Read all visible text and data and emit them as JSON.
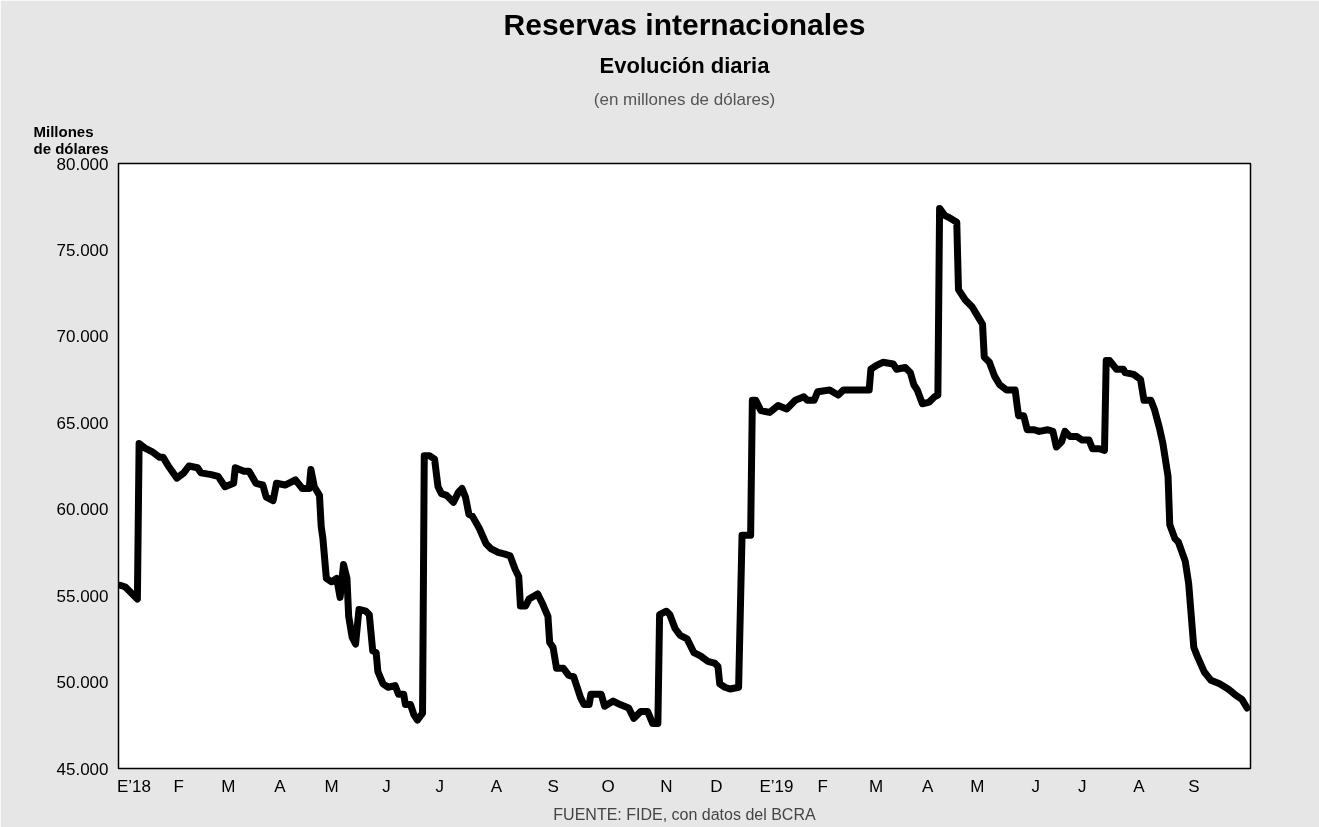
{
  "chart_data": {
    "type": "line",
    "title": "Reservas internacionales",
    "subtitle": "Evolución diaria",
    "ylabel": "Millones de dólares",
    "annotations": [
      "(en millones de dólares)",
      "FUENTE: FIDE, con datos del BCRA"
    ],
    "x": [
      "2018-01-02",
      "2018-01-05",
      "2018-01-12",
      "2018-01-13",
      "2018-01-17",
      "2018-01-21",
      "2018-01-25",
      "2018-01-27",
      "2018-01-30",
      "2018-02-04",
      "2018-02-08",
      "2018-02-11",
      "2018-02-16",
      "2018-02-18",
      "2018-02-24",
      "2018-02-28",
      "2018-03-04",
      "2018-03-09",
      "2018-03-10",
      "2018-03-15",
      "2018-03-18",
      "2018-03-22",
      "2018-03-26",
      "2018-03-28",
      "2018-04-01",
      "2018-04-03",
      "2018-04-08",
      "2018-04-14",
      "2018-04-18",
      "2018-04-22",
      "2018-04-23",
      "2018-04-25",
      "2018-04-28",
      "2018-04-29",
      "2018-04-30",
      "2018-05-02",
      "2018-05-05",
      "2018-05-08",
      "2018-05-10",
      "2018-05-12",
      "2018-05-14",
      "2018-05-15",
      "2018-05-17",
      "2018-05-19",
      "2018-05-21",
      "2018-05-25",
      "2018-05-27",
      "2018-05-29",
      "2018-05-31",
      "2018-06-01",
      "2018-06-04",
      "2018-06-07",
      "2018-06-11",
      "2018-06-13",
      "2018-06-16",
      "2018-06-17",
      "2018-06-20",
      "2018-06-22",
      "2018-06-24",
      "2018-06-27",
      "2018-06-28",
      "2018-07-01",
      "2018-07-04",
      "2018-07-06",
      "2018-07-08",
      "2018-07-11",
      "2018-07-15",
      "2018-07-18",
      "2018-07-20",
      "2018-07-22",
      "2018-07-24",
      "2018-07-26",
      "2018-07-30",
      "2018-08-03",
      "2018-08-06",
      "2018-08-10",
      "2018-08-14",
      "2018-08-17",
      "2018-08-20",
      "2018-08-22",
      "2018-08-23",
      "2018-08-26",
      "2018-08-28",
      "2018-09-02",
      "2018-09-05",
      "2018-09-08",
      "2018-09-09",
      "2018-09-11",
      "2018-09-13",
      "2018-09-17",
      "2018-09-20",
      "2018-09-23",
      "2018-09-27",
      "2018-09-29",
      "2018-10-02",
      "2018-10-03",
      "2018-10-09",
      "2018-10-11",
      "2018-10-16",
      "2018-10-20",
      "2018-10-25",
      "2018-10-28",
      "2018-11-01",
      "2018-11-05",
      "2018-11-08",
      "2018-11-11",
      "2018-11-12",
      "2018-11-16",
      "2018-11-18",
      "2018-11-21",
      "2018-11-24",
      "2018-11-28",
      "2018-12-02",
      "2018-12-04",
      "2018-12-06",
      "2018-12-10",
      "2018-12-14",
      "2018-12-16",
      "2018-12-17",
      "2018-12-20",
      "2018-12-23",
      "2018-12-28",
      "2018-12-30",
      "2019-01-04",
      "2019-01-05",
      "2019-01-07",
      "2019-01-10",
      "2019-01-15",
      "2019-01-20",
      "2019-01-25",
      "2019-01-30",
      "2019-02-04",
      "2019-02-06",
      "2019-02-10",
      "2019-02-12",
      "2019-02-19",
      "2019-02-24",
      "2019-02-27",
      "2019-03-06",
      "2019-03-10",
      "2019-03-14",
      "2019-03-15",
      "2019-03-18",
      "2019-03-22",
      "2019-03-28",
      "2019-03-30",
      "2019-04-04",
      "2019-04-07",
      "2019-04-09",
      "2019-04-11",
      "2019-04-14",
      "2019-04-18",
      "2019-04-21",
      "2019-04-23",
      "2019-04-24",
      "2019-04-27",
      "2019-04-29",
      "2019-05-04",
      "2019-05-05",
      "2019-05-09",
      "2019-05-13",
      "2019-05-16",
      "2019-05-19",
      "2019-05-20",
      "2019-05-23",
      "2019-05-26",
      "2019-05-29",
      "2019-06-02",
      "2019-06-07",
      "2019-06-08",
      "2019-06-09",
      "2019-06-12",
      "2019-06-14",
      "2019-06-18",
      "2019-06-21",
      "2019-06-26",
      "2019-06-29",
      "2019-07-01",
      "2019-07-04",
      "2019-07-06",
      "2019-07-09",
      "2019-07-13",
      "2019-07-16",
      "2019-07-20",
      "2019-07-22",
      "2019-07-26",
      "2019-07-29",
      "2019-07-30",
      "2019-08-01",
      "2019-08-05",
      "2019-08-09",
      "2019-08-10",
      "2019-08-15",
      "2019-08-19",
      "2019-08-21",
      "2019-08-25",
      "2019-08-27",
      "2019-08-30",
      "2019-09-01",
      "2019-09-04",
      "2019-09-05",
      "2019-09-08",
      "2019-09-10",
      "2019-09-14",
      "2019-09-16",
      "2019-09-19",
      "2019-09-21",
      "2019-09-25",
      "2019-09-29",
      "2019-10-04",
      "2019-10-09",
      "2019-10-14",
      "2019-10-17",
      "2019-10-20"
    ],
    "series": [
      {
        "color": "#000000",
        "values": [
          55600,
          55500,
          54800,
          63800,
          63500,
          63300,
          63000,
          63000,
          62500,
          61800,
          62100,
          62500,
          62400,
          62100,
          62000,
          61900,
          61300,
          61500,
          62400,
          62200,
          62200,
          61500,
          61400,
          60700,
          60500,
          61500,
          61400,
          61700,
          61200,
          61200,
          62300,
          61300,
          60800,
          59000,
          58300,
          56000,
          55800,
          56000,
          54900,
          56800,
          56000,
          53800,
          52600,
          52200,
          54200,
          54100,
          53900,
          51800,
          51700,
          50600,
          49900,
          49700,
          49800,
          49300,
          49300,
          48700,
          48700,
          48100,
          47800,
          48200,
          63100,
          63100,
          62900,
          61300,
          60900,
          60800,
          60400,
          61000,
          61200,
          60700,
          59700,
          59600,
          58900,
          58000,
          57700,
          57500,
          57400,
          57300,
          56500,
          56100,
          54400,
          54400,
          54800,
          55100,
          54500,
          53800,
          52300,
          52000,
          50800,
          50800,
          50400,
          50300,
          49100,
          48700,
          48700,
          49300,
          49300,
          48600,
          48900,
          48700,
          48500,
          47900,
          48300,
          48300,
          47600,
          47600,
          53900,
          54100,
          53900,
          53100,
          52700,
          52500,
          51700,
          51600,
          51500,
          51200,
          51100,
          50900,
          49900,
          49700,
          49600,
          49700,
          58500,
          58500,
          66300,
          66300,
          65700,
          65600,
          66000,
          65800,
          66300,
          66500,
          66300,
          66300,
          66800,
          66900,
          66600,
          66900,
          66900,
          66900,
          66900,
          68100,
          68300,
          68500,
          68400,
          68100,
          68200,
          67900,
          67200,
          66900,
          66100,
          66200,
          66500,
          66600,
          77400,
          77000,
          76900,
          76600,
          72700,
          72100,
          71700,
          71200,
          70700,
          68800,
          68500,
          67700,
          67200,
          66900,
          66900,
          66100,
          65400,
          65400,
          64600,
          64600,
          64500,
          64600,
          64500,
          63600,
          63900,
          64500,
          64200,
          64200,
          64000,
          64000,
          63500,
          63500,
          63400,
          68600,
          68600,
          68100,
          68100,
          67900,
          67800,
          67500,
          66300,
          66300,
          65800,
          64700,
          63800,
          61900,
          59100,
          58300,
          58100,
          57000,
          55700,
          52000,
          51500,
          50600,
          50100,
          49900,
          49600,
          49200,
          49000,
          48500
        ]
      }
    ],
    "xlim": [
      "2018-01-01",
      "2019-10-22"
    ],
    "xticks": [
      {
        "value": "2018-01-10",
        "label": "E’18"
      },
      {
        "value": "2018-02-05",
        "label": "F"
      },
      {
        "value": "2018-03-06",
        "label": "M"
      },
      {
        "value": "2018-04-05",
        "label": "A"
      },
      {
        "value": "2018-05-05",
        "label": "M"
      },
      {
        "value": "2018-06-06",
        "label": "J"
      },
      {
        "value": "2018-07-07",
        "label": "J"
      },
      {
        "value": "2018-08-09",
        "label": "A"
      },
      {
        "value": "2018-09-11",
        "label": "S"
      },
      {
        "value": "2018-10-13",
        "label": "O"
      },
      {
        "value": "2018-11-16",
        "label": "N"
      },
      {
        "value": "2018-12-15",
        "label": "D"
      },
      {
        "value": "2019-01-19",
        "label": "E’19"
      },
      {
        "value": "2019-02-15",
        "label": "F"
      },
      {
        "value": "2019-03-18",
        "label": "M"
      },
      {
        "value": "2019-04-17",
        "label": "A"
      },
      {
        "value": "2019-05-16",
        "label": "M"
      },
      {
        "value": "2019-06-19",
        "label": "J"
      },
      {
        "value": "2019-07-16",
        "label": "J"
      },
      {
        "value": "2019-08-18",
        "label": "A"
      },
      {
        "value": "2019-09-19",
        "label": "S"
      }
    ],
    "ylim": [
      45000,
      80000
    ],
    "yticks": [
      {
        "value": 45000,
        "label": "45.000"
      },
      {
        "value": 50000,
        "label": "50.000"
      },
      {
        "value": 55000,
        "label": "55.000"
      },
      {
        "value": 60000,
        "label": "60.000"
      },
      {
        "value": 65000,
        "label": "65.000"
      },
      {
        "value": 70000,
        "label": "70.000"
      },
      {
        "value": 75000,
        "label": "75.000"
      },
      {
        "value": 80000,
        "label": "80.000"
      }
    ],
    "grid": false,
    "marker": "none",
    "line_style": "solid"
  }
}
